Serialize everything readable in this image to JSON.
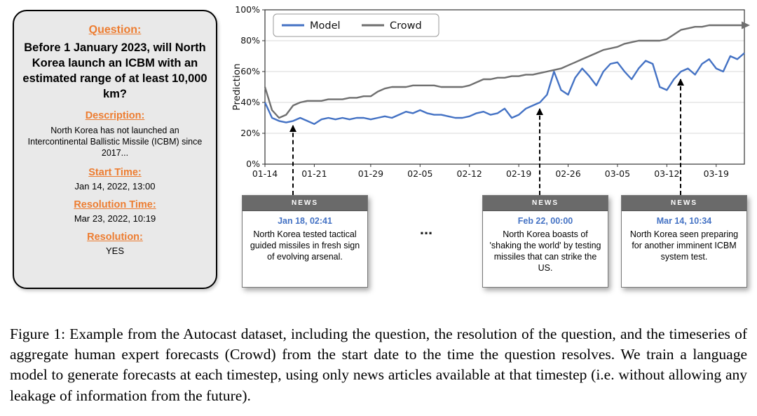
{
  "colors": {
    "accent_orange": "#ed7d31",
    "card_background": "#e9e9e9",
    "news_header_gray": "#6a6a6a",
    "news_date_blue": "#4472c4",
    "model_blue": "#4472c4",
    "crowd_gray": "#6f6f6f"
  },
  "question_card": {
    "question_label": "Question:",
    "question_text": "Before 1 January 2023, will North Korea launch an ICBM with an estimated range of at least 10,000 km?",
    "description_label": "Description:",
    "description_text": "North Korea has not launched an Intercontinental Ballistic Missile (ICBM) since 2017...",
    "start_time_label": "Start Time:",
    "start_time_value": "Jan 14, 2022, 13:00",
    "resolution_time_label": "Resolution Time:",
    "resolution_time_value": "Mar 23, 2022, 10:19",
    "resolution_label": "Resolution:",
    "resolution_value": "YES"
  },
  "chart_data": {
    "type": "line",
    "title": "",
    "xlabel": "",
    "ylabel": "Prediction",
    "ylim": [
      0,
      100
    ],
    "x_days_range": [
      0,
      68
    ],
    "grid": true,
    "legend_position": "upper left",
    "yticks": [
      {
        "value": 0,
        "label": "0%"
      },
      {
        "value": 20,
        "label": "20%"
      },
      {
        "value": 40,
        "label": "40%"
      },
      {
        "value": 60,
        "label": "60%"
      },
      {
        "value": 80,
        "label": "80%"
      },
      {
        "value": 100,
        "label": "100%"
      }
    ],
    "xticks": [
      {
        "day": 0,
        "label": "01-14"
      },
      {
        "day": 7,
        "label": "01-21"
      },
      {
        "day": 15,
        "label": "01-29"
      },
      {
        "day": 22,
        "label": "02-05"
      },
      {
        "day": 29,
        "label": "02-12"
      },
      {
        "day": 36,
        "label": "02-19"
      },
      {
        "day": 43,
        "label": "02-26"
      },
      {
        "day": 50,
        "label": "03-05"
      },
      {
        "day": 57,
        "label": "03-12"
      },
      {
        "day": 64,
        "label": "03-19"
      }
    ],
    "series": [
      {
        "name": "Model",
        "color": "#4472c4",
        "end_arrow": false,
        "values": [
          40,
          30,
          28,
          27,
          28,
          30,
          28,
          26,
          29,
          30,
          29,
          30,
          29,
          30,
          30,
          29,
          30,
          31,
          30,
          32,
          34,
          33,
          35,
          33,
          32,
          32,
          31,
          30,
          30,
          31,
          33,
          34,
          32,
          33,
          36,
          30,
          32,
          36,
          38,
          40,
          45,
          60,
          48,
          45,
          56,
          62,
          57,
          51,
          60,
          65,
          66,
          60,
          55,
          62,
          67,
          65,
          50,
          48,
          55,
          60,
          62,
          58,
          65,
          68,
          62,
          60,
          70,
          68,
          72
        ]
      },
      {
        "name": "Crowd",
        "color": "#6f6f6f",
        "end_arrow": true,
        "values": [
          50,
          35,
          30,
          32,
          38,
          40,
          41,
          41,
          41,
          42,
          42,
          42,
          43,
          43,
          44,
          44,
          47,
          49,
          50,
          50,
          50,
          51,
          51,
          51,
          51,
          50,
          50,
          50,
          50,
          51,
          53,
          55,
          55,
          56,
          56,
          57,
          57,
          58,
          58,
          59,
          60,
          61,
          62,
          64,
          66,
          68,
          70,
          72,
          74,
          75,
          76,
          78,
          79,
          80,
          80,
          80,
          80,
          81,
          84,
          87,
          88,
          89,
          89,
          90,
          90,
          90,
          90,
          90,
          90
        ]
      }
    ]
  },
  "news_cards": {
    "header": "NEWS",
    "ellipsis": "...",
    "items": [
      {
        "timestamp": "Jan 18, 02:41",
        "text": "North Korea tested tactical guided missiles in fresh sign of evolving arsenal.",
        "day": 4,
        "arrow_tip_value": 25
      },
      {
        "timestamp": "Feb 22, 00:00",
        "text": "North Korea boasts of 'shaking the world' by testing missiles that can strike the US.",
        "day": 39,
        "arrow_tip_value": 36
      },
      {
        "timestamp": "Mar 14, 10:34",
        "text": "North Korea seen preparing for another imminent ICBM system test.",
        "day": 59,
        "arrow_tip_value": 55
      }
    ]
  },
  "caption": "Figure 1: Example from the Autocast dataset, including the question, the resolution of the question, and the timeseries of aggregate human expert forecasts (Crowd) from the start date to the time the question resolves. We train a language model to generate forecasts at each timestep, using only news articles available at that timestep (i.e. without allowing any leakage of information from the future)."
}
